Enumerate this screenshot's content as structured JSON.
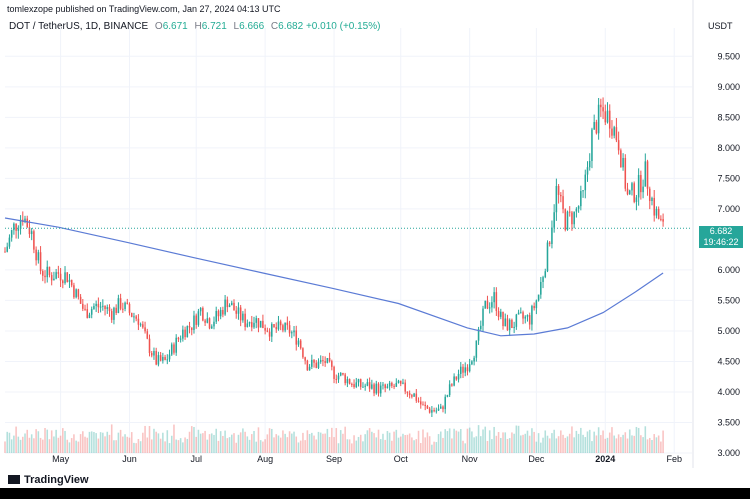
{
  "header": {
    "text": "tomlexzope published on TradingView.com, Jan 27, 2024 04:13 UTC"
  },
  "legend": {
    "title": "DOT / TetherUS, 1D, BINANCE",
    "o_label": "O",
    "o_value": "6.671",
    "h_label": "H",
    "h_value": "6.721",
    "l_label": "L",
    "l_value": "6.666",
    "c_label": "C",
    "c_value": "6.682",
    "change": "+0.010 (+0.15%)"
  },
  "unit": "USDT",
  "price_label": {
    "value": "6.682",
    "countdown": "19:46:22"
  },
  "footer": {
    "logo_text": "TradingView"
  },
  "colors": {
    "up": "#26a69a",
    "down": "#ef5350",
    "ma": "#5b7bd5",
    "grid": "#f0f3fa",
    "last_price": "#26a69a"
  },
  "chart_data": {
    "type": "candlestick",
    "y_ticks": [
      "9.500",
      "9.000",
      "8.500",
      "8.000",
      "7.500",
      "7.000",
      "6.000",
      "5.500",
      "5.000",
      "4.500",
      "4.000",
      "3.500",
      "3.000"
    ],
    "ylim": [
      3.0,
      9.8
    ],
    "x_ticks": [
      "May",
      "Jun",
      "Jul",
      "Aug",
      "Sep",
      "Oct",
      "Nov",
      "Dec",
      "2024",
      "Feb"
    ],
    "x_tick_dates": [
      "2023-05-01",
      "2023-06-01",
      "2023-07-01",
      "2023-08-01",
      "2023-09-01",
      "2023-10-01",
      "2023-11-01",
      "2023-12-01",
      "2024-01-01",
      "2024-02-01"
    ],
    "xlim": [
      "2023-04-06",
      "2024-02-09"
    ],
    "series_close_path": [
      [
        "2023-04-06",
        6.3
      ],
      [
        "2023-04-10",
        6.7
      ],
      [
        "2023-04-14",
        6.9
      ],
      [
        "2023-04-18",
        6.6
      ],
      [
        "2023-04-22",
        6.0
      ],
      [
        "2023-04-26",
        5.9
      ],
      [
        "2023-04-30",
        5.95
      ],
      [
        "2023-05-04",
        5.9
      ],
      [
        "2023-05-08",
        5.6
      ],
      [
        "2023-05-12",
        5.3
      ],
      [
        "2023-05-16",
        5.4
      ],
      [
        "2023-05-20",
        5.4
      ],
      [
        "2023-05-24",
        5.3
      ],
      [
        "2023-05-28",
        5.45
      ],
      [
        "2023-06-01",
        5.3
      ],
      [
        "2023-06-05",
        5.2
      ],
      [
        "2023-06-09",
        4.8
      ],
      [
        "2023-06-13",
        4.5
      ],
      [
        "2023-06-17",
        4.5
      ],
      [
        "2023-06-21",
        4.75
      ],
      [
        "2023-06-25",
        5.0
      ],
      [
        "2023-06-29",
        5.1
      ],
      [
        "2023-07-03",
        5.35
      ],
      [
        "2023-07-07",
        5.15
      ],
      [
        "2023-07-11",
        5.25
      ],
      [
        "2023-07-15",
        5.5
      ],
      [
        "2023-07-19",
        5.3
      ],
      [
        "2023-07-23",
        5.15
      ],
      [
        "2023-07-27",
        5.2
      ],
      [
        "2023-07-31",
        5.1
      ],
      [
        "2023-08-04",
        5.0
      ],
      [
        "2023-08-08",
        5.05
      ],
      [
        "2023-08-12",
        5.0
      ],
      [
        "2023-08-16",
        4.85
      ],
      [
        "2023-08-20",
        4.45
      ],
      [
        "2023-08-24",
        4.45
      ],
      [
        "2023-08-28",
        4.5
      ],
      [
        "2023-09-01",
        4.3
      ],
      [
        "2023-09-05",
        4.25
      ],
      [
        "2023-09-09",
        4.15
      ],
      [
        "2023-09-13",
        4.1
      ],
      [
        "2023-09-17",
        4.1
      ],
      [
        "2023-09-21",
        4.05
      ],
      [
        "2023-09-25",
        4.05
      ],
      [
        "2023-09-29",
        4.1
      ],
      [
        "2023-10-03",
        4.05
      ],
      [
        "2023-10-07",
        3.95
      ],
      [
        "2023-10-11",
        3.75
      ],
      [
        "2023-10-15",
        3.7
      ],
      [
        "2023-10-19",
        3.7
      ],
      [
        "2023-10-23",
        4.05
      ],
      [
        "2023-10-27",
        4.3
      ],
      [
        "2023-10-31",
        4.45
      ],
      [
        "2023-11-04",
        4.75
      ],
      [
        "2023-11-08",
        5.4
      ],
      [
        "2023-11-12",
        5.55
      ],
      [
        "2023-11-16",
        5.1
      ],
      [
        "2023-11-20",
        5.1
      ],
      [
        "2023-11-24",
        5.2
      ],
      [
        "2023-11-28",
        5.2
      ],
      [
        "2023-12-02",
        5.6
      ],
      [
        "2023-12-06",
        6.3
      ],
      [
        "2023-12-10",
        7.3
      ],
      [
        "2023-12-14",
        6.8
      ],
      [
        "2023-12-18",
        6.9
      ],
      [
        "2023-12-22",
        7.2
      ],
      [
        "2023-12-26",
        8.2
      ],
      [
        "2023-12-30",
        8.6
      ],
      [
        "2024-01-03",
        8.5
      ],
      [
        "2024-01-07",
        8.1
      ],
      [
        "2024-01-11",
        7.2
      ],
      [
        "2024-01-15",
        7.3
      ],
      [
        "2024-01-19",
        7.6
      ],
      [
        "2024-01-23",
        7.0
      ],
      [
        "2024-01-27",
        6.68
      ]
    ],
    "ma_path": [
      [
        "2023-04-06",
        6.85
      ],
      [
        "2023-04-30",
        6.7
      ],
      [
        "2023-05-31",
        6.45
      ],
      [
        "2023-06-30",
        6.2
      ],
      [
        "2023-07-31",
        5.95
      ],
      [
        "2023-08-31",
        5.7
      ],
      [
        "2023-09-30",
        5.45
      ],
      [
        "2023-10-31",
        5.05
      ],
      [
        "2023-11-15",
        4.92
      ],
      [
        "2023-11-30",
        4.95
      ],
      [
        "2023-12-15",
        5.05
      ],
      [
        "2023-12-31",
        5.3
      ],
      [
        "2024-01-15",
        5.65
      ],
      [
        "2024-01-27",
        5.95
      ]
    ],
    "last_price": 6.682
  }
}
